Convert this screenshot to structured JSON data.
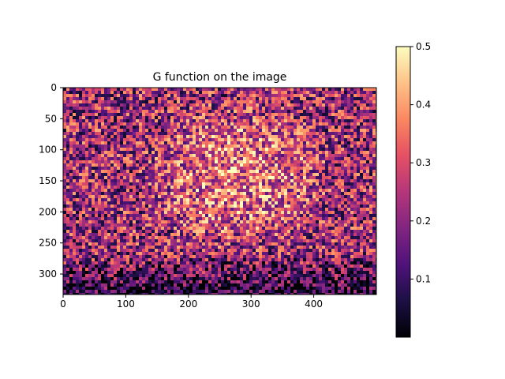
{
  "chart_data": {
    "type": "heatmap",
    "title": "G function on the image",
    "xlabel": "",
    "ylabel": "",
    "image_size": {
      "width": 500,
      "height": 333
    },
    "xlim": [
      0,
      500
    ],
    "ylim": [
      333,
      0
    ],
    "xticks": [
      0,
      100,
      200,
      300,
      400
    ],
    "yticks": [
      0,
      50,
      100,
      150,
      200,
      250,
      300
    ],
    "colormap": "magma",
    "colorbar": {
      "range": [
        0.0,
        0.5
      ],
      "ticks": [
        0.1,
        0.2,
        0.3,
        0.4,
        0.5
      ]
    },
    "grid": false,
    "content_description_note": null
  },
  "colors": {
    "magma": [
      "#000004",
      "#1c1044",
      "#4f127b",
      "#812581",
      "#b5367a",
      "#e55064",
      "#fb8761",
      "#fec287",
      "#fcfdbf"
    ]
  }
}
